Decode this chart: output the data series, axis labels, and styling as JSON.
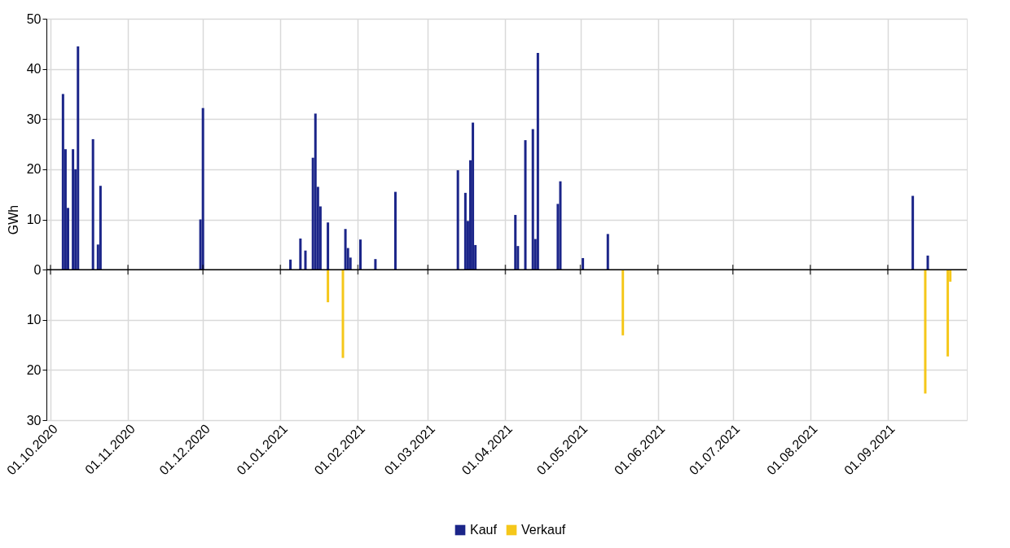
{
  "chart_data": {
    "type": "bar",
    "ylabel": "GWh",
    "ylim": [
      -30,
      50
    ],
    "yticks": [
      {
        "value": -30,
        "label": "30"
      },
      {
        "value": -20,
        "label": "20"
      },
      {
        "value": -10,
        "label": "10"
      },
      0,
      10,
      20,
      30,
      40,
      50
    ],
    "xlim": [
      "2020-10-01",
      "2021-10-01"
    ],
    "xticks": [
      {
        "value": "2020-10-01",
        "label": "01.10.2020"
      },
      {
        "value": "2020-11-01",
        "label": "01.11.2020"
      },
      {
        "value": "2020-12-01",
        "label": "01.12.2020"
      },
      {
        "value": "2021-01-01",
        "label": "01.01.2021"
      },
      {
        "value": "2021-02-01",
        "label": "01.02.2021"
      },
      {
        "value": "2021-03-01",
        "label": "01.03.2021"
      },
      {
        "value": "2021-04-01",
        "label": "01.04.2021"
      },
      {
        "value": "2021-05-01",
        "label": "01.05.2021"
      },
      {
        "value": "2021-06-01",
        "label": "01.06.2021"
      },
      {
        "value": "2021-07-01",
        "label": "01.07.2021"
      },
      {
        "value": "2021-08-01",
        "label": "01.08.2021"
      },
      {
        "value": "2021-09-01",
        "label": "01.09.2021"
      }
    ],
    "grid": true,
    "legend": "bottom",
    "series": [
      {
        "name": "Kauf",
        "color": "#1b2589",
        "x": [
          "2020-10-06",
          "2020-10-07",
          "2020-10-08",
          "2020-10-10",
          "2020-10-11",
          "2020-10-12",
          "2020-10-18",
          "2020-10-20",
          "2020-10-21",
          "2020-11-30",
          "2020-12-01",
          "2021-01-05",
          "2021-01-09",
          "2021-01-11",
          "2021-01-14",
          "2021-01-15",
          "2021-01-16",
          "2021-01-17",
          "2021-01-20",
          "2021-01-27",
          "2021-01-28",
          "2021-01-29",
          "2021-02-02",
          "2021-02-08",
          "2021-02-16",
          "2021-03-13",
          "2021-03-16",
          "2021-03-17",
          "2021-03-18",
          "2021-03-19",
          "2021-03-20",
          "2021-04-05",
          "2021-04-06",
          "2021-04-09",
          "2021-04-12",
          "2021-04-13",
          "2021-04-14",
          "2021-04-22",
          "2021-04-23",
          "2021-05-02",
          "2021-05-12",
          "2021-09-11",
          "2021-09-17"
        ],
        "values": [
          35,
          24,
          12.3,
          24,
          20,
          44.5,
          26,
          5,
          16.7,
          10,
          32.2,
          2.0,
          6.2,
          3.8,
          22.3,
          31.1,
          16.5,
          12.6,
          9.4,
          8.1,
          4.3,
          2.4,
          6.0,
          2.1,
          15.5,
          19.8,
          15.3,
          9.7,
          21.8,
          29.3,
          4.9,
          10.9,
          4.7,
          25.8,
          28.0,
          6.1,
          43.2,
          13.1,
          17.6,
          2.3,
          7.1,
          14.7,
          2.8
        ]
      },
      {
        "name": "Verkauf",
        "color": "#f5c71a",
        "x": [
          "2021-01-20",
          "2021-01-26",
          "2021-05-18",
          "2021-09-16",
          "2021-09-25",
          "2021-09-26"
        ],
        "values": [
          -6.5,
          -17.6,
          -13.1,
          -24.7,
          -17.3,
          -2.4
        ]
      }
    ]
  }
}
